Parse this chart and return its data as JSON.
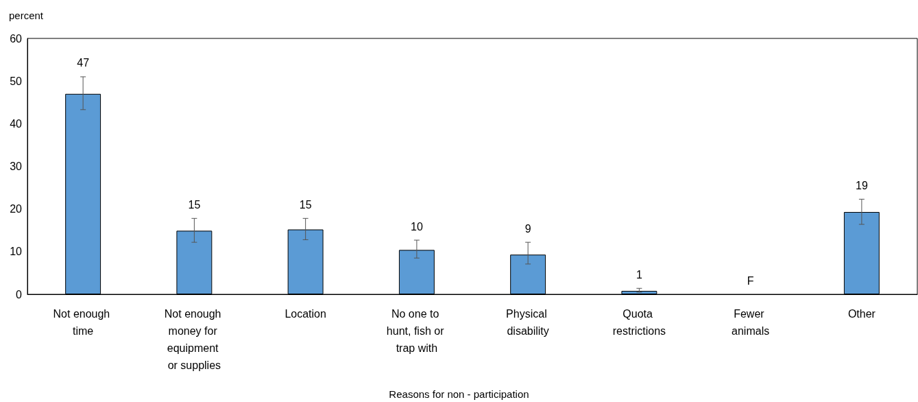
{
  "chart_data": {
    "type": "bar",
    "ylabel": "percent",
    "xlabel": "Reasons for non - participation",
    "categories": [
      "Not enough time",
      "Not enough money for equipment or supplies",
      "Location",
      "No one to hunt, fish or trap with",
      "Physical disability",
      "Quota restrictions",
      "Fewer animals",
      "Other"
    ],
    "values": [
      47.0,
      14.9,
      15.2,
      10.4,
      9.3,
      0.8,
      null,
      19.3
    ],
    "errors": [
      [
        43.3,
        51.0
      ],
      [
        12.2,
        17.8
      ],
      [
        12.8,
        17.8
      ],
      [
        8.5,
        12.7
      ],
      [
        7.1,
        12.2
      ],
      [
        0.5,
        1.4
      ],
      null,
      [
        16.4,
        22.3
      ]
    ],
    "value_labels": [
      "47",
      "15",
      "15",
      "10",
      "9",
      "1",
      "F",
      "19"
    ],
    "color": "#5b9bd5",
    "ylim": [
      0,
      60
    ],
    "yticks": [
      0,
      10,
      20,
      30,
      40,
      50,
      60
    ],
    "grid": false
  }
}
